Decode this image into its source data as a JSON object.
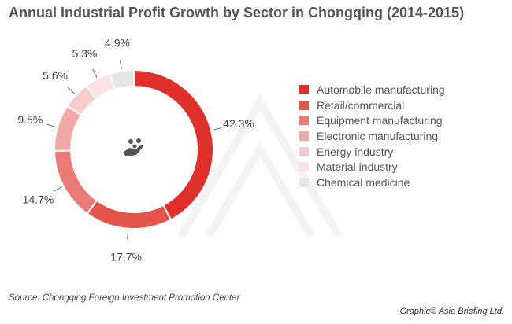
{
  "chart_data": {
    "type": "pie",
    "title": "Annual Industrial Profit Growth by Sector in Chongqing (2014-2015)",
    "categories": [
      "Automobile manufacturing",
      "Retail/commercial",
      "Equipment manufacturing",
      "Electronic manufacturing",
      "Energy industry",
      "Material industry",
      "Chemical medicine"
    ],
    "values": [
      42.3,
      17.7,
      14.7,
      9.5,
      5.6,
      5.3,
      4.9
    ],
    "labels": [
      "42.3%",
      "17.7%",
      "14.7%",
      "9.5%",
      "5.6%",
      "5.3%",
      "4.9%"
    ],
    "colors": [
      "#e0302a",
      "#e5534d",
      "#ec7a74",
      "#f2a9a5",
      "#f7cdcb",
      "#fae3e2",
      "#e6e6e6"
    ],
    "legend_position": "right",
    "donut": true
  },
  "source": "Source: Chongqing Foreign Investment Promotion Center",
  "credit": "Graphic© Asia Briefing Ltd."
}
